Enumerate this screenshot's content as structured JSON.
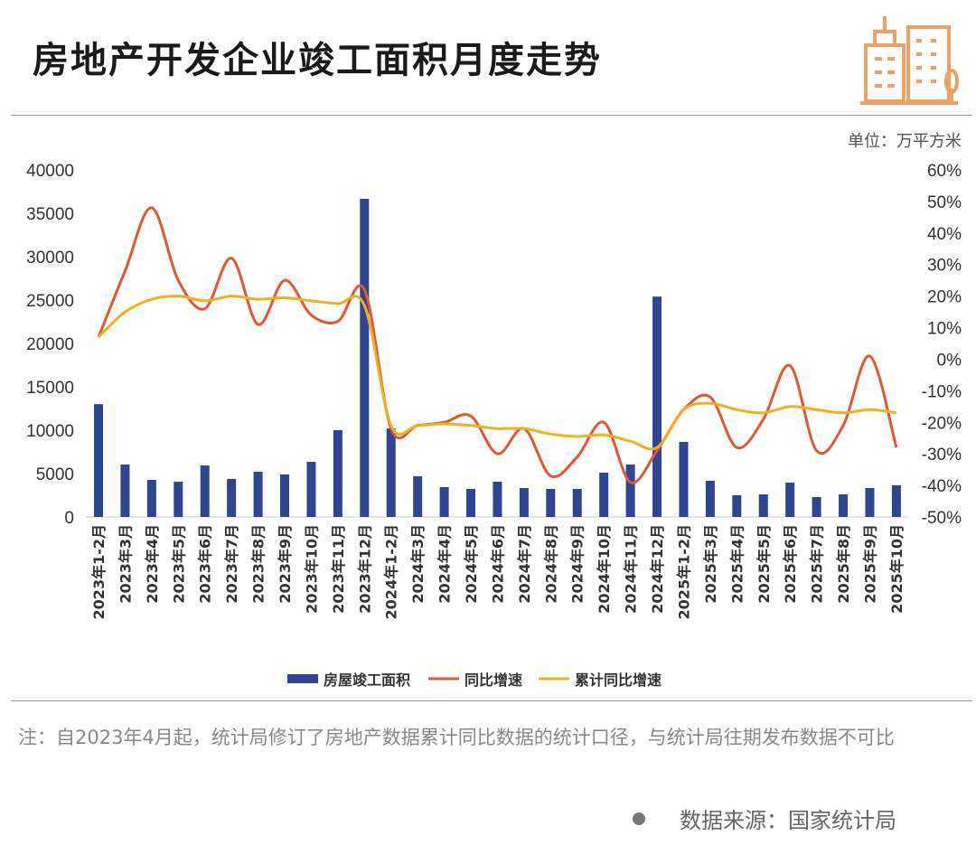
{
  "title": "房地产开发企业竣工面积月度走势",
  "unit": "单位：万平方米",
  "note": "注：自2023年4月起，统计局修订了房地产数据累计同比数据的统计口径，与统计局往期发布数据不可比",
  "source": "数据来源：国家统计局",
  "colors": {
    "bar": "#2e4593",
    "yoy": "#e2582f",
    "cum": "#f0b020",
    "logo": "#f0a060"
  },
  "chart_data": {
    "type": "bar+line",
    "categories": [
      "2023年1-2月",
      "2023年3月",
      "2023年4月",
      "2023年5月",
      "2023年6月",
      "2023年7月",
      "2023年8月",
      "2023年9月",
      "2023年10月",
      "2023年11月",
      "2023年12月",
      "2024年1-2月",
      "2024年3月",
      "2024年4月",
      "2024年5月",
      "2024年6月",
      "2024年7月",
      "2024年8月",
      "2024年9月",
      "2024年10月",
      "2024年11月",
      "2024年12月",
      "2025年1-2月",
      "2025年3月",
      "2025年4月",
      "2025年5月",
      "2025年6月",
      "2025年7月",
      "2025年8月",
      "2025年9月",
      "2025年10月"
    ],
    "left_axis": {
      "ylim": [
        0,
        40000
      ],
      "ticks": [
        "0",
        "5000",
        "10000",
        "15000",
        "20000",
        "25000",
        "30000",
        "35000",
        "40000"
      ]
    },
    "right_axis": {
      "ylim": [
        -50,
        60
      ],
      "ticks": [
        "-50%",
        "-40%",
        "-30%",
        "-20%",
        "-10%",
        "0%",
        "10%",
        "20%",
        "30%",
        "40%",
        "50%",
        "60%"
      ]
    },
    "series": [
      {
        "name": "房屋竣工面积",
        "type": "bar",
        "axis": "left",
        "values": [
          13000,
          6040,
          4270,
          4060,
          5940,
          4380,
          5210,
          4900,
          6350,
          10000,
          36670,
          10200,
          4690,
          3440,
          3230,
          4060,
          3330,
          3230,
          3230,
          5100,
          6040,
          25400,
          8650,
          4170,
          2500,
          2600,
          3960,
          2290,
          2600,
          3330,
          3650
        ]
      },
      {
        "name": "同比增速",
        "type": "line",
        "axis": "right",
        "values": [
          7,
          28,
          48,
          25,
          16,
          32,
          11,
          25,
          14,
          12,
          22,
          -22,
          -21,
          -20,
          -18,
          -30,
          -22,
          -37,
          -31,
          -20,
          -39,
          -29,
          -16,
          -12,
          -28,
          -19,
          -2,
          -29,
          -21,
          1,
          -28
        ]
      },
      {
        "name": "累计同比增速",
        "type": "line",
        "axis": "right",
        "values": [
          7,
          15,
          19,
          20,
          18.5,
          20,
          19,
          19.5,
          18.5,
          17.6,
          17,
          -21,
          -21,
          -20.5,
          -21,
          -22,
          -22,
          -23.7,
          -24.5,
          -24,
          -26,
          -28,
          -16,
          -14,
          -16,
          -17,
          -15,
          -16,
          -17,
          -16,
          -17
        ]
      }
    ],
    "legend": "bottom"
  }
}
